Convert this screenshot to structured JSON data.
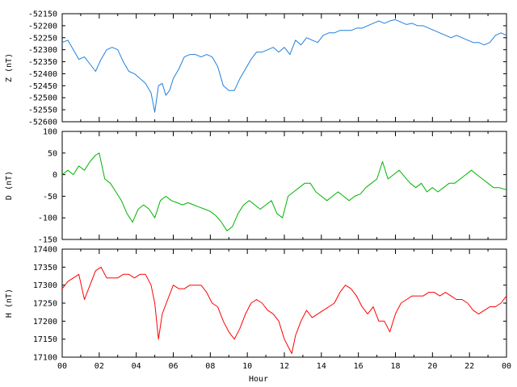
{
  "chart_data": [
    {
      "type": "line",
      "ylabel": "Z (nT)",
      "color": "#1f7fdd",
      "ylim": [
        -52600,
        -52150
      ],
      "yticks": [
        -52150,
        -52200,
        -52250,
        -52300,
        -52350,
        -52400,
        -52450,
        -52500,
        -52550,
        -52600
      ],
      "xlim": [
        0,
        24
      ],
      "series": [
        {
          "x": [
            0,
            0.3,
            0.6,
            0.9,
            1.2,
            1.5,
            1.8,
            2.1,
            2.4,
            2.7,
            3.0,
            3.3,
            3.6,
            3.9,
            4.2,
            4.5,
            4.8,
            5.0,
            5.2,
            5.4,
            5.6,
            5.8,
            6.0,
            6.3,
            6.6,
            6.9,
            7.2,
            7.5,
            7.8,
            8.1,
            8.4,
            8.7,
            9.0,
            9.3,
            9.6,
            9.9,
            10.2,
            10.5,
            10.8,
            11.1,
            11.4,
            11.7,
            12.0,
            12.3,
            12.6,
            12.9,
            13.2,
            13.5,
            13.8,
            14.1,
            14.4,
            14.7,
            15.0,
            15.3,
            15.6,
            15.9,
            16.2,
            16.5,
            16.8,
            17.1,
            17.4,
            17.7,
            18.0,
            18.3,
            18.6,
            18.9,
            19.2,
            19.5,
            19.8,
            20.1,
            20.4,
            20.7,
            21.0,
            21.3,
            21.6,
            21.9,
            22.2,
            22.5,
            22.8,
            23.1,
            23.4,
            23.7,
            24.0
          ],
          "y": [
            -52270,
            -52260,
            -52300,
            -52340,
            -52330,
            -52360,
            -52390,
            -52340,
            -52300,
            -52290,
            -52300,
            -52350,
            -52390,
            -52400,
            -52420,
            -52440,
            -52480,
            -52560,
            -52450,
            -52440,
            -52490,
            -52470,
            -52420,
            -52380,
            -52330,
            -52320,
            -52320,
            -52330,
            -52320,
            -52330,
            -52370,
            -52450,
            -52470,
            -52470,
            -52420,
            -52380,
            -52340,
            -52310,
            -52310,
            -52300,
            -52290,
            -52310,
            -52290,
            -52320,
            -52260,
            -52280,
            -52250,
            -52260,
            -52270,
            -52240,
            -52230,
            -52230,
            -52220,
            -52220,
            -52220,
            -52210,
            -52210,
            -52200,
            -52190,
            -52180,
            -52190,
            -52180,
            -52175,
            -52185,
            -52195,
            -52190,
            -52200,
            -52200,
            -52210,
            -52220,
            -52230,
            -52240,
            -52250,
            -52240,
            -52250,
            -52260,
            -52270,
            -52270,
            -52280,
            -52270,
            -52240,
            -52230,
            -52240
          ]
        }
      ]
    },
    {
      "type": "line",
      "ylabel": "D (nT)",
      "color": "#00b400",
      "ylim": [
        -150,
        100
      ],
      "yticks": [
        100,
        50,
        0,
        -50,
        -100,
        -150
      ],
      "xlim": [
        0,
        24
      ],
      "series": [
        {
          "x": [
            0,
            0.3,
            0.6,
            0.9,
            1.2,
            1.5,
            1.8,
            2.0,
            2.3,
            2.6,
            2.9,
            3.2,
            3.5,
            3.8,
            4.1,
            4.4,
            4.7,
            5.0,
            5.3,
            5.6,
            5.9,
            6.2,
            6.5,
            6.8,
            7.1,
            7.4,
            7.7,
            8.0,
            8.3,
            8.6,
            8.9,
            9.2,
            9.5,
            9.8,
            10.1,
            10.4,
            10.7,
            11.0,
            11.3,
            11.6,
            11.9,
            12.2,
            12.5,
            12.8,
            13.1,
            13.4,
            13.7,
            14.0,
            14.3,
            14.6,
            14.9,
            15.2,
            15.5,
            15.8,
            16.1,
            16.4,
            16.7,
            17.0,
            17.3,
            17.6,
            17.9,
            18.2,
            18.5,
            18.8,
            19.1,
            19.4,
            19.7,
            20.0,
            20.3,
            20.6,
            20.9,
            21.2,
            21.5,
            21.8,
            22.1,
            22.4,
            22.7,
            23.0,
            23.3,
            23.6,
            24.0
          ],
          "y": [
            0,
            10,
            0,
            20,
            10,
            30,
            45,
            50,
            -10,
            -20,
            -40,
            -60,
            -90,
            -110,
            -80,
            -70,
            -80,
            -100,
            -60,
            -50,
            -60,
            -65,
            -70,
            -65,
            -70,
            -75,
            -80,
            -85,
            -95,
            -110,
            -130,
            -120,
            -90,
            -70,
            -60,
            -70,
            -80,
            -70,
            -60,
            -90,
            -100,
            -50,
            -40,
            -30,
            -20,
            -20,
            -40,
            -50,
            -60,
            -50,
            -40,
            -50,
            -60,
            -50,
            -45,
            -30,
            -20,
            -10,
            30,
            -10,
            0,
            10,
            -5,
            -20,
            -30,
            -20,
            -40,
            -30,
            -40,
            -30,
            -20,
            -20,
            -10,
            0,
            10,
            0,
            -10,
            -20,
            -30,
            -30,
            -35
          ]
        }
      ]
    },
    {
      "type": "line",
      "ylabel": "H (nT)",
      "color": "#ff0000",
      "ylim": [
        17100,
        17400
      ],
      "yticks": [
        17400,
        17350,
        17300,
        17250,
        17200,
        17150,
        17100
      ],
      "xlim": [
        0,
        24
      ],
      "xticks": [
        "00",
        "02",
        "04",
        "06",
        "08",
        "10",
        "12",
        "14",
        "16",
        "18",
        "20",
        "22",
        "00"
      ],
      "xlabel": "Hour",
      "series": [
        {
          "x": [
            0,
            0.3,
            0.6,
            0.9,
            1.2,
            1.5,
            1.8,
            2.1,
            2.4,
            2.7,
            3.0,
            3.3,
            3.6,
            3.9,
            4.2,
            4.5,
            4.8,
            5.0,
            5.2,
            5.4,
            5.7,
            6.0,
            6.3,
            6.6,
            6.9,
            7.2,
            7.5,
            7.8,
            8.1,
            8.4,
            8.7,
            9.0,
            9.3,
            9.6,
            9.9,
            10.2,
            10.5,
            10.8,
            11.1,
            11.4,
            11.7,
            12.0,
            12.2,
            12.4,
            12.6,
            12.9,
            13.2,
            13.5,
            13.8,
            14.1,
            14.4,
            14.7,
            15.0,
            15.3,
            15.6,
            15.9,
            16.2,
            16.5,
            16.8,
            17.1,
            17.4,
            17.7,
            18.0,
            18.3,
            18.6,
            18.9,
            19.2,
            19.5,
            19.8,
            20.1,
            20.4,
            20.7,
            21.0,
            21.3,
            21.6,
            21.9,
            22.2,
            22.5,
            22.8,
            23.1,
            23.4,
            23.7,
            24.0
          ],
          "y": [
            17290,
            17310,
            17320,
            17330,
            17260,
            17300,
            17340,
            17350,
            17320,
            17320,
            17320,
            17330,
            17330,
            17320,
            17330,
            17330,
            17300,
            17250,
            17150,
            17220,
            17260,
            17300,
            17290,
            17290,
            17300,
            17300,
            17300,
            17280,
            17250,
            17240,
            17200,
            17170,
            17150,
            17180,
            17220,
            17250,
            17260,
            17250,
            17230,
            17220,
            17200,
            17150,
            17130,
            17110,
            17160,
            17200,
            17230,
            17210,
            17220,
            17230,
            17240,
            17250,
            17280,
            17300,
            17290,
            17270,
            17240,
            17220,
            17240,
            17200,
            17200,
            17170,
            17220,
            17250,
            17260,
            17270,
            17270,
            17270,
            17280,
            17280,
            17270,
            17280,
            17270,
            17260,
            17260,
            17250,
            17230,
            17220,
            17230,
            17240,
            17240,
            17250,
            17270
          ]
        }
      ]
    }
  ]
}
